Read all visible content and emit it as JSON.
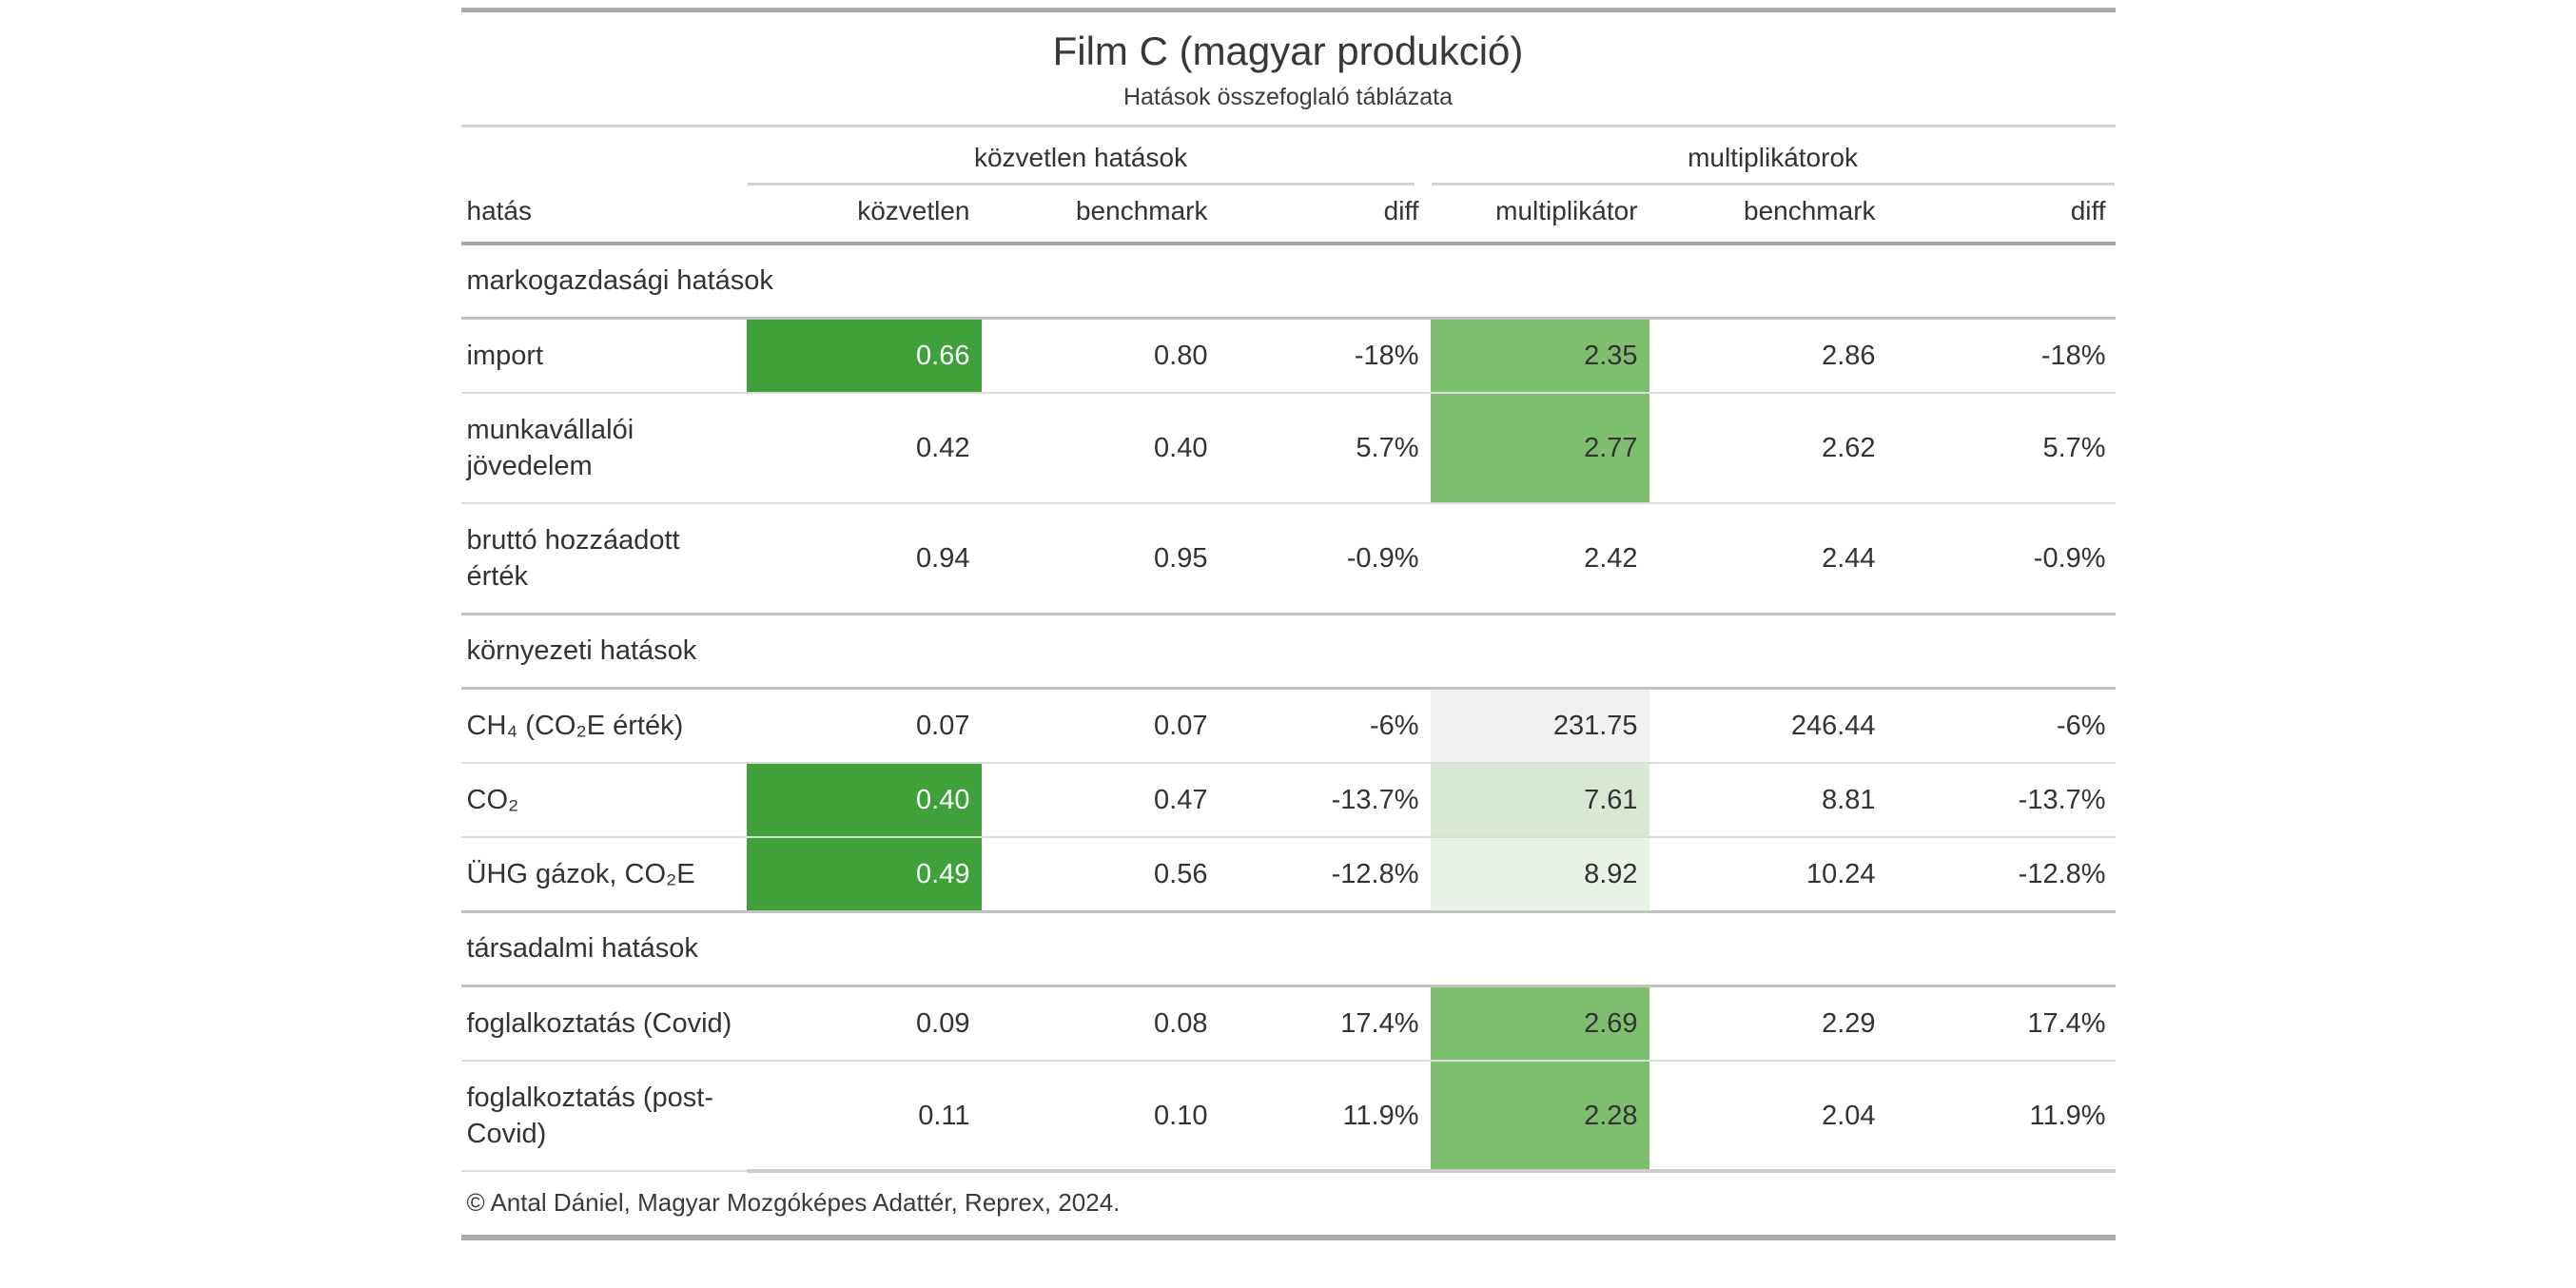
{
  "chart_data": {
    "type": "table",
    "title": "Film C (magyar produkció)",
    "subtitle": "Hatások összefoglaló táblázata",
    "spanners": [
      {
        "label": "közvetlen hatások",
        "columns": [
          "közvetlen",
          "benchmark",
          "diff"
        ]
      },
      {
        "label": "multiplikátorok",
        "columns": [
          "multiplikátor",
          "benchmark",
          "diff"
        ]
      }
    ],
    "columns": [
      "hatás",
      "közvetlen",
      "benchmark",
      "diff",
      "multiplikátor",
      "benchmark",
      "diff"
    ],
    "groups": [
      {
        "label": "markogazdasági hatások",
        "rows": [
          {
            "label": "import",
            "values": [
              "0.66",
              "0.80",
              "-18%",
              "2.35",
              "2.86",
              "-18%"
            ],
            "fills": [
              "green_strong",
              null,
              null,
              "green_medium",
              null,
              null
            ]
          },
          {
            "label": "munkavállalói jövedelem",
            "values": [
              "0.42",
              "0.40",
              "5.7%",
              "2.77",
              "2.62",
              "5.7%"
            ],
            "fills": [
              null,
              null,
              null,
              "green_medium",
              null,
              null
            ]
          },
          {
            "label": "bruttó hozzáadott érték",
            "values": [
              "0.94",
              "0.95",
              "-0.9%",
              "2.42",
              "2.44",
              "-0.9%"
            ],
            "fills": [
              null,
              null,
              null,
              null,
              null,
              null
            ]
          }
        ]
      },
      {
        "label": "környezeti hatások",
        "rows": [
          {
            "label": "CH₄ (CO₂E érték)",
            "values": [
              "0.07",
              "0.07",
              "-6%",
              "231.75",
              "246.44",
              "-6%"
            ],
            "fills": [
              null,
              null,
              null,
              "gray_fill",
              null,
              null
            ]
          },
          {
            "label": "CO₂",
            "values": [
              "0.40",
              "0.47",
              "-13.7%",
              "7.61",
              "8.81",
              "-13.7%"
            ],
            "fills": [
              "green_strong",
              null,
              null,
              "green_pale",
              null,
              null
            ]
          },
          {
            "label": "ÜHG gázok, CO₂E",
            "values": [
              "0.49",
              "0.56",
              "-12.8%",
              "8.92",
              "10.24",
              "-12.8%"
            ],
            "fills": [
              "green_strong",
              null,
              null,
              "green_faint",
              null,
              null
            ]
          }
        ]
      },
      {
        "label": "társadalmi hatások",
        "rows": [
          {
            "label": "foglalkoztatás (Covid)",
            "values": [
              "0.09",
              "0.08",
              "17.4%",
              "2.69",
              "2.29",
              "17.4%"
            ],
            "fills": [
              null,
              null,
              null,
              "green_medium",
              null,
              null
            ]
          },
          {
            "label": "foglalkoztatás (post-Covid)",
            "values": [
              "0.11",
              "0.10",
              "11.9%",
              "2.28",
              "2.04",
              "11.9%"
            ],
            "fills": [
              null,
              null,
              null,
              "green_medium",
              null,
              null
            ]
          }
        ]
      }
    ],
    "source_note": "© Antal Dániel, Magyar Mozgóképes Adattér, Reprex, 2024.",
    "layout_hints": {
      "grid": "horizontal-rules-only",
      "numeric_alignment": "right",
      "highlight_meaning": "green fill = highlighted value cells"
    },
    "colors": {
      "green_strong": "#3fa13a",
      "green_medium": "#7dbf6f",
      "green_pale": "#d9e8d4",
      "green_faint": "#e9f2e6",
      "gray_fill": "#f0f0ee",
      "text": "#333333"
    }
  }
}
